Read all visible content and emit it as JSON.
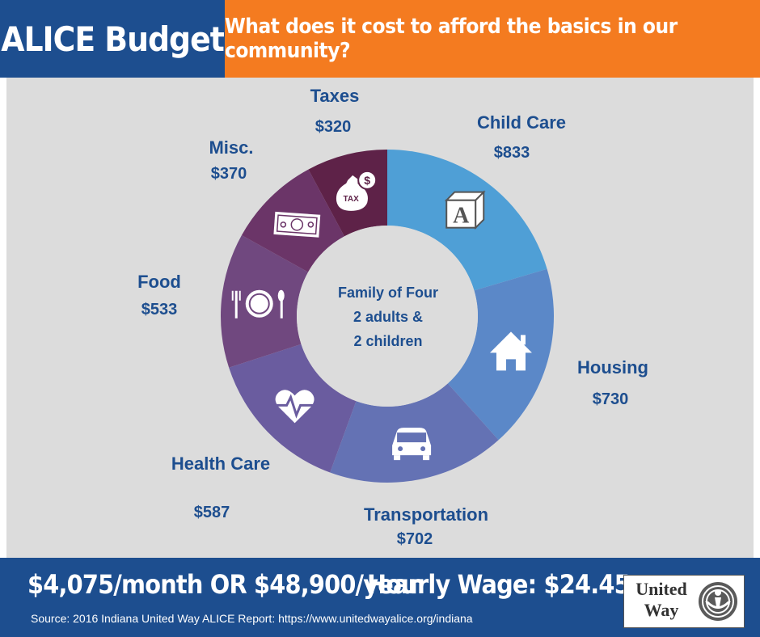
{
  "header": {
    "title": "ALICE Budget",
    "subtitle": "What does it cost to afford the basics in our community?"
  },
  "center": {
    "line1": "Family of Four",
    "line2": "2 adults &",
    "line3": "2 children"
  },
  "chart_data": {
    "type": "pie",
    "categories": [
      "Child Care",
      "Housing",
      "Transportation",
      "Health Care",
      "Food",
      "Misc.",
      "Taxes"
    ],
    "values": [
      833,
      730,
      702,
      587,
      533,
      370,
      320
    ],
    "value_labels": [
      "$833",
      "$730",
      "$702",
      "$587",
      "$533",
      "$370",
      "$320"
    ],
    "colors": [
      "#4f9fd6",
      "#5b88c8",
      "#6472b4",
      "#6a5c9f",
      "#70487f",
      "#6b3568",
      "#5e2248"
    ],
    "icons": [
      "alphabet-block-icon",
      "house-icon",
      "car-icon",
      "heartbeat-icon",
      "plate-fork-spoon-icon",
      "dollar-bill-icon",
      "tax-money-bag-icon"
    ]
  },
  "footer": {
    "monthly": "$4,075/month OR $48,900/year",
    "wage": "Hourly Wage: $24.45",
    "source": "Source: 2016 Indiana United Way ALICE Report: https://www.unitedwayalice.org/indiana",
    "logo_line1": "United",
    "logo_line2": "Way"
  }
}
